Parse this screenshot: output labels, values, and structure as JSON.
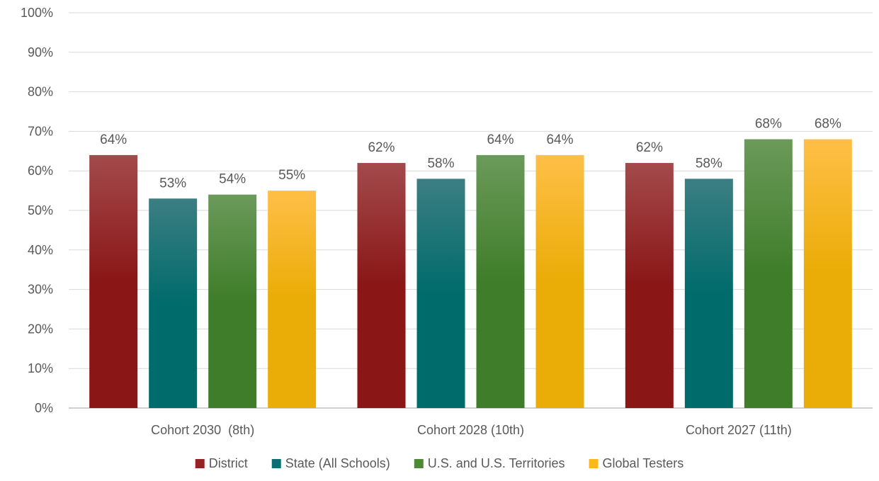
{
  "chart_data": {
    "type": "bar",
    "title": "",
    "xlabel": "",
    "ylabel": "",
    "ylim": [
      0,
      100
    ],
    "y_ticks": [
      0,
      10,
      20,
      30,
      40,
      50,
      60,
      70,
      80,
      90,
      100
    ],
    "y_tick_format": "percent",
    "grid": true,
    "legend_position": "bottom",
    "categories": [
      "Cohort 2030  (8th)",
      "Cohort 2028 (10th)",
      "Cohort 2027 (11th)"
    ],
    "series": [
      {
        "name": "District",
        "values": [
          64,
          62,
          62
        ],
        "color_top": "#a34a4c",
        "color_bottom": "#8a1616",
        "legend_color": "#962323"
      },
      {
        "name": "State (All Schools)",
        "values": [
          53,
          58,
          58
        ],
        "color_top": "#3c7e82",
        "color_bottom": "#006b6b",
        "legend_color": "#0a6f72"
      },
      {
        "name": "U.S. and U.S. Territories",
        "values": [
          54,
          64,
          68
        ],
        "color_top": "#6b9a5a",
        "color_bottom": "#3f7d2a",
        "legend_color": "#4c8a35"
      },
      {
        "name": "Global Testers",
        "values": [
          55,
          64,
          68
        ],
        "color_top": "#ffbf48",
        "color_bottom": "#eaac06",
        "legend_color": "#fbb917"
      }
    ],
    "data_labels": [
      [
        "64%",
        "62%",
        "62%"
      ],
      [
        "53%",
        "58%",
        "58%"
      ],
      [
        "54%",
        "64%",
        "68%"
      ],
      [
        "55%",
        "64%",
        "68%"
      ]
    ],
    "gridline_color": "#d9d9d9",
    "axis_line_color": "#bfbfbf"
  }
}
